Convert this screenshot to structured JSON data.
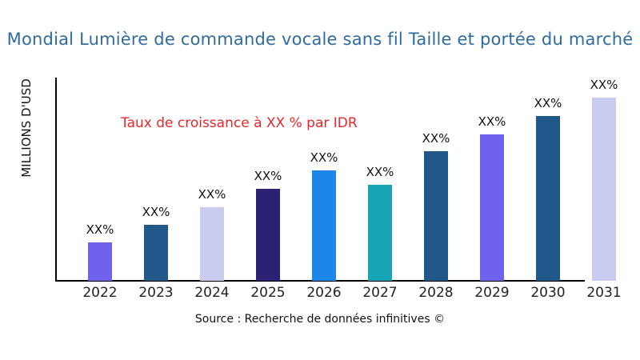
{
  "chart_data": {
    "type": "bar",
    "title": "Mondial Lumière de commande vocale sans fil Taille et portée du marché",
    "ylabel": "MILLIONS D'USD",
    "xlabel": "",
    "annotation": "Taux de croissance à XX % par IDR",
    "categories": [
      "2022",
      "2023",
      "2024",
      "2025",
      "2026",
      "2027",
      "2028",
      "2029",
      "2030",
      "2031"
    ],
    "values": [
      48,
      70,
      92,
      115,
      138,
      120,
      162,
      183,
      206,
      229
    ],
    "value_unit": "relative bar height (no numeric axis shown)",
    "value_labels": [
      "XX%",
      "XX%",
      "XX%",
      "XX%",
      "XX%",
      "XX%",
      "XX%",
      "XX%",
      "XX%",
      "XX%"
    ],
    "bar_colors": [
      "#6f63ee",
      "#23588a",
      "#c9ccef",
      "#2a2272",
      "#1e86e8",
      "#17a5b5",
      "#21588a",
      "#6f63ee",
      "#21588a",
      "#c9ccef"
    ],
    "grid": false,
    "legend": false,
    "axis_color": "#000000"
  },
  "colors": {
    "title": "#2f6b9e",
    "annotation": "#e8262a",
    "text": "#111111",
    "background": "#ffffff"
  },
  "source": {
    "text": "Source : Recherche de données infinitives ©"
  }
}
